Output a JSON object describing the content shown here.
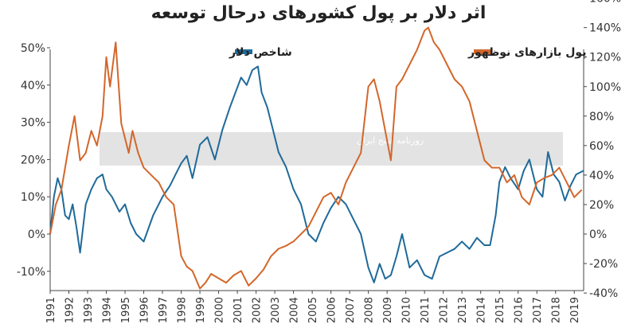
{
  "chart_data": {
    "type": "line",
    "title": "اثر دلار بر پول کشورهای درحال توسعه",
    "xlabel": "",
    "ylabel": "",
    "x_tick_labels": [
      "1991",
      "1992",
      "1993",
      "1994",
      "1995",
      "1996",
      "1997",
      "1998",
      "1999",
      "2000",
      "2001",
      "2002",
      "2003",
      "2004",
      "2005",
      "2006",
      "2007",
      "2008",
      "2009",
      "2010",
      "2011",
      "2012",
      "2013",
      "2014",
      "2015",
      "2016",
      "2017",
      "2018",
      "2019"
    ],
    "xlim": [
      1991,
      2019.5
    ],
    "left_axis": {
      "ticks": [
        "50%",
        "40%",
        "30%",
        "20%",
        "10%",
        "0%",
        "-10%"
      ],
      "range": [
        -15,
        50
      ]
    },
    "right_axis": {
      "ticks": [
        "160%",
        "140%",
        "120%",
        "100%",
        "80%",
        "60%",
        "40%",
        "20%",
        "0%",
        "-20%",
        "-40%"
      ],
      "range": [
        -45,
        160
      ]
    },
    "grid": false,
    "legend_position": "top",
    "series": [
      {
        "name": "شاخص دلار",
        "color": "#1f6a99",
        "axis": "left",
        "x": [
          1991.0,
          1991.2,
          1991.4,
          1991.6,
          1991.8,
          1992.0,
          1992.2,
          1992.4,
          1992.6,
          1992.9,
          1993.2,
          1993.5,
          1993.8,
          1994.0,
          1994.3,
          1994.7,
          1995.0,
          1995.3,
          1995.6,
          1996.0,
          1996.5,
          1997.0,
          1997.4,
          1997.7,
          1998.0,
          1998.3,
          1998.6,
          1999.0,
          1999.4,
          1999.8,
          2000.2,
          2000.6,
          2000.9,
          2001.2,
          2001.5,
          2001.8,
          2002.1,
          2002.3,
          2002.6,
          2002.9,
          2003.2,
          2003.6,
          2004.0,
          2004.4,
          2004.8,
          2005.2,
          2005.6,
          2006.0,
          2006.4,
          2006.8,
          2007.2,
          2007.6,
          2008.0,
          2008.3,
          2008.6,
          2008.9,
          2009.2,
          2009.5,
          2009.8,
          2010.2,
          2010.6,
          2011.0,
          2011.4,
          2011.8,
          2012.2,
          2012.6,
          2013.0,
          2013.4,
          2013.8,
          2014.2,
          2014.5,
          2014.8,
          2015.0,
          2015.3,
          2015.6,
          2016.0,
          2016.3,
          2016.6,
          2017.0,
          2017.3,
          2017.6,
          2017.9,
          2018.2,
          2018.5,
          2018.8,
          2019.1,
          2019.5
        ],
        "values": [
          0,
          10,
          15,
          12,
          5,
          4,
          8,
          2,
          -5,
          8,
          12,
          15,
          16,
          12,
          10,
          6,
          8,
          3,
          0,
          -2,
          5,
          10,
          13,
          16,
          19,
          21,
          15,
          24,
          26,
          20,
          28,
          34,
          38,
          42,
          40,
          44,
          45,
          38,
          34,
          28,
          22,
          18,
          12,
          8,
          0,
          -2,
          3,
          7,
          10,
          8,
          4,
          0,
          -9,
          -13,
          -8,
          -12,
          -11,
          -6,
          0,
          -9,
          -7,
          -11,
          -12,
          -6,
          -5,
          -4,
          -2,
          -4,
          -1,
          -3,
          -3,
          5,
          14,
          18,
          15,
          12,
          17,
          20,
          12,
          10,
          22,
          16,
          14,
          9,
          13,
          16,
          17
        ]
      },
      {
        "name": "پول بازارهای نوظهور",
        "color": "#d4662a",
        "axis": "right",
        "x": [
          1991.0,
          1991.3,
          1991.6,
          1992.0,
          1992.3,
          1992.6,
          1992.9,
          1993.2,
          1993.5,
          1993.8,
          1994.0,
          1994.2,
          1994.5,
          1994.8,
          1995.0,
          1995.2,
          1995.4,
          1995.7,
          1996.0,
          1996.4,
          1996.8,
          1997.2,
          1997.6,
          1998.0,
          1998.3,
          1998.6,
          1999.0,
          1999.3,
          1999.6,
          2000.0,
          2000.4,
          2000.8,
          2001.2,
          2001.6,
          2002.0,
          2002.4,
          2002.8,
          2003.2,
          2003.6,
          2004.0,
          2004.4,
          2004.8,
          2005.2,
          2005.6,
          2006.0,
          2006.4,
          2006.8,
          2007.2,
          2007.6,
          2008.0,
          2008.3,
          2008.6,
          2008.9,
          2009.2,
          2009.5,
          2009.8,
          2010.2,
          2010.6,
          2011.0,
          2011.2,
          2011.5,
          2011.8,
          2012.2,
          2012.6,
          2013.0,
          2013.4,
          2013.8,
          2014.2,
          2014.6,
          2015.0,
          2015.4,
          2015.8,
          2016.2,
          2016.6,
          2017.0,
          2017.4,
          2017.8,
          2018.2,
          2018.6,
          2019.0,
          2019.4
        ],
        "values": [
          0,
          20,
          30,
          60,
          80,
          50,
          55,
          70,
          60,
          80,
          120,
          100,
          130,
          75,
          65,
          55,
          70,
          55,
          45,
          40,
          35,
          25,
          20,
          -15,
          -22,
          -25,
          -37,
          -33,
          -27,
          -30,
          -33,
          -28,
          -25,
          -35,
          -30,
          -24,
          -15,
          -10,
          -8,
          -5,
          0,
          5,
          15,
          25,
          28,
          20,
          35,
          45,
          55,
          100,
          105,
          90,
          70,
          50,
          100,
          105,
          115,
          125,
          138,
          140,
          130,
          125,
          115,
          105,
          100,
          90,
          70,
          50,
          45,
          45,
          35,
          40,
          25,
          20,
          35,
          38,
          40,
          45,
          35,
          25,
          30
        ]
      }
    ],
    "watermark": "روزنامه صبح ایران"
  }
}
